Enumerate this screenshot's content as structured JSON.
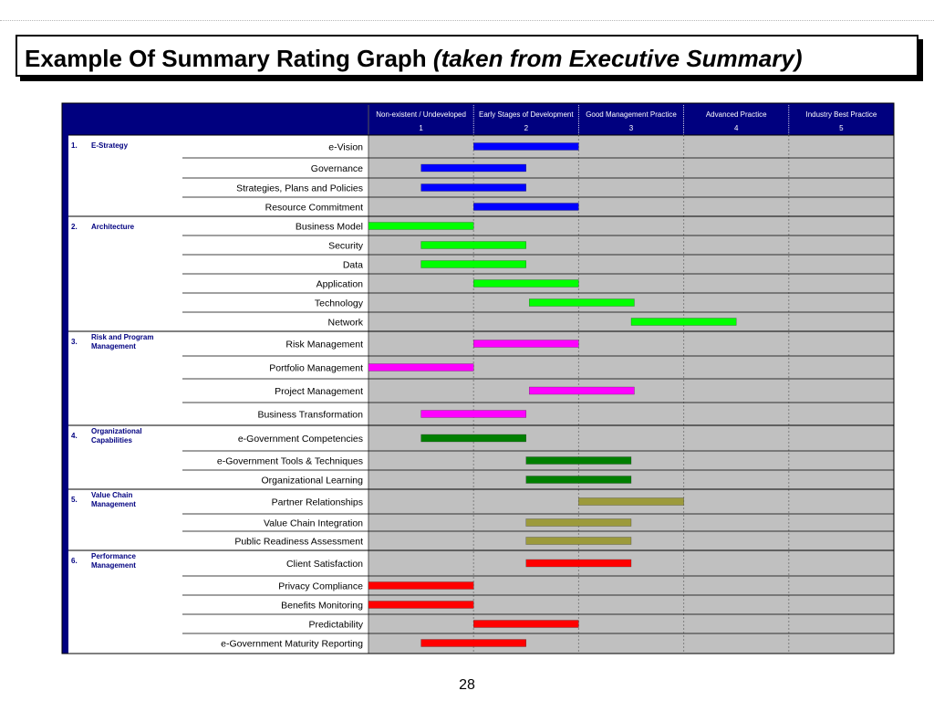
{
  "title": {
    "main": "Example Of Summary Rating Graph",
    "italic": "(taken from Executive Summary)"
  },
  "page_number": "28",
  "colors": {
    "header_bg": "#00007f",
    "grid_bg": "#c0c0c0",
    "blue": "#0000ff",
    "green": "#00ff00",
    "magenta": "#ff00ff",
    "dark_green": "#007f00",
    "olive": "#9c9a3c",
    "red": "#ff0000",
    "category_text": "#000080"
  },
  "chart_data": {
    "type": "bar",
    "orientation": "horizontal-range",
    "xlim": [
      0,
      5
    ],
    "levels": [
      {
        "label": "Non-existent / Undeveloped",
        "number": "1"
      },
      {
        "label": "Early Stages of Development",
        "number": "2"
      },
      {
        "label": "Good Management Practice",
        "number": "3"
      },
      {
        "label": "Advanced Practice",
        "number": "4"
      },
      {
        "label": "Industry Best Practice",
        "number": "5"
      }
    ],
    "groups": [
      {
        "num": "1.",
        "name": "E-Strategy",
        "color": "#0000ff",
        "items": [
          {
            "label": "e-Vision",
            "start": 1.0,
            "end": 2.0
          },
          {
            "label": "Governance",
            "start": 0.5,
            "end": 1.5
          },
          {
            "label": "Strategies, Plans and Policies",
            "start": 0.5,
            "end": 1.5
          },
          {
            "label": "Resource Commitment",
            "start": 1.0,
            "end": 2.0
          }
        ]
      },
      {
        "num": "2.",
        "name": "Architecture",
        "color": "#00ff00",
        "items": [
          {
            "label": "Business Model",
            "start": 0.0,
            "end": 1.0
          },
          {
            "label": "Security",
            "start": 0.5,
            "end": 1.5
          },
          {
            "label": "Data",
            "start": 0.5,
            "end": 1.5
          },
          {
            "label": "Application",
            "start": 1.0,
            "end": 2.0
          },
          {
            "label": "Technology",
            "start": 1.53,
            "end": 2.53
          },
          {
            "label": "Network",
            "start": 2.5,
            "end": 3.5
          }
        ]
      },
      {
        "num": "3.",
        "name": "Risk and Program Management",
        "color": "#ff00ff",
        "items": [
          {
            "label": "Risk Management",
            "start": 1.0,
            "end": 2.0
          },
          {
            "label": "Portfolio Management",
            "start": 0.0,
            "end": 1.0
          },
          {
            "label": "Project Management",
            "start": 1.53,
            "end": 2.53
          },
          {
            "label": "Business Transformation",
            "start": 0.5,
            "end": 1.5
          }
        ]
      },
      {
        "num": "4.",
        "name": "Organizational Capabilities",
        "color": "#007f00",
        "items": [
          {
            "label": "e-Government Competencies",
            "start": 0.5,
            "end": 1.5
          },
          {
            "label": "e-Government Tools & Techniques",
            "start": 1.5,
            "end": 2.5
          },
          {
            "label": "Organizational Learning",
            "start": 1.5,
            "end": 2.5
          }
        ]
      },
      {
        "num": "5.",
        "name": "Value Chain Management",
        "color": "#9c9a3c",
        "items": [
          {
            "label": "Partner Relationships",
            "start": 2.0,
            "end": 3.0
          },
          {
            "label": "Value Chain Integration",
            "start": 1.5,
            "end": 2.5
          },
          {
            "label": "Public Readiness Assessment",
            "start": 1.5,
            "end": 2.5
          }
        ]
      },
      {
        "num": "6.",
        "name": "Performance Management",
        "color": "#ff0000",
        "items": [
          {
            "label": "Client Satisfaction",
            "start": 1.5,
            "end": 2.5
          },
          {
            "label": "Privacy Compliance",
            "start": 0.0,
            "end": 1.0
          },
          {
            "label": "Benefits Monitoring",
            "start": 0.0,
            "end": 1.0
          },
          {
            "label": "Predictability",
            "start": 1.0,
            "end": 2.0
          },
          {
            "label": "e-Government Maturity Reporting",
            "start": 0.5,
            "end": 1.5
          }
        ]
      }
    ]
  }
}
